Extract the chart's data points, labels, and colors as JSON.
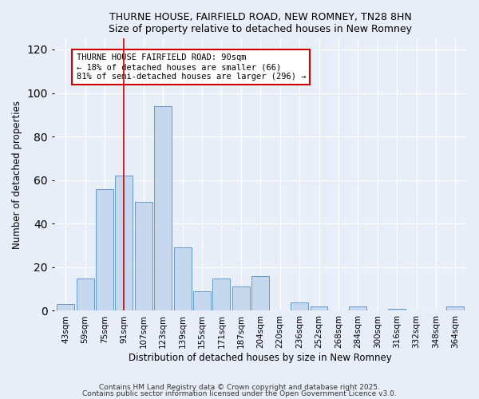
{
  "title": "THURNE HOUSE, FAIRFIELD ROAD, NEW ROMNEY, TN28 8HN",
  "subtitle": "Size of property relative to detached houses in New Romney",
  "xlabel": "Distribution of detached houses by size in New Romney",
  "ylabel": "Number of detached properties",
  "bar_color": "#c5d8ee",
  "bar_edge_color": "#6699cc",
  "background_color": "#e8eef7",
  "plot_bg_color": "#e8eef7",
  "grid_color": "#ffffff",
  "categories": [
    "43sqm",
    "59sqm",
    "75sqm",
    "91sqm",
    "107sqm",
    "123sqm",
    "139sqm",
    "155sqm",
    "171sqm",
    "187sqm",
    "204sqm",
    "220sqm",
    "236sqm",
    "252sqm",
    "268sqm",
    "284sqm",
    "300sqm",
    "316sqm",
    "332sqm",
    "348sqm",
    "364sqm"
  ],
  "values": [
    3,
    15,
    56,
    62,
    50,
    94,
    29,
    9,
    15,
    11,
    16,
    0,
    4,
    2,
    0,
    2,
    0,
    1,
    0,
    0,
    2
  ],
  "ylim": [
    0,
    125
  ],
  "yticks": [
    0,
    20,
    40,
    60,
    80,
    100,
    120
  ],
  "vline_color": "#cc0000",
  "vline_x": 3,
  "annotation_line1": "THURNE HOUSE FAIRFIELD ROAD: 90sqm",
  "annotation_line2": "← 18% of detached houses are smaller (66)",
  "annotation_line3": "81% of semi-detached houses are larger (296) →",
  "footer1": "Contains HM Land Registry data © Crown copyright and database right 2025.",
  "footer2": "Contains public sector information licensed under the Open Government Licence v3.0."
}
